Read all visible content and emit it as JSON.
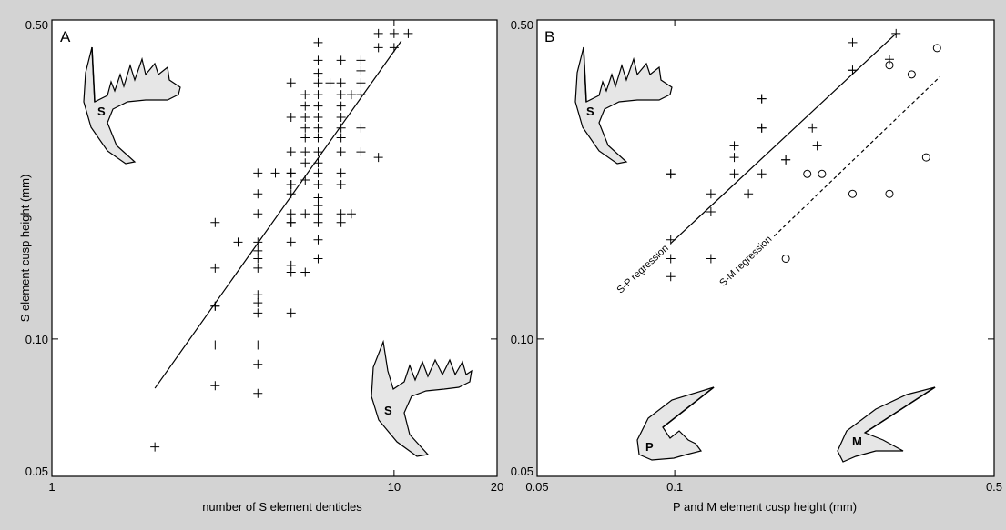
{
  "chart_data": [
    {
      "type": "scatter",
      "panel_label": "A",
      "xlabel": "number of S element denticles",
      "ylabel": "S element cusp height (mm)",
      "xscale": "log",
      "yscale": "log",
      "xlim": [
        1,
        20
      ],
      "ylim": [
        0.05,
        0.5
      ],
      "xticks": [
        {
          "value": 1,
          "label": "1"
        },
        {
          "value": 10,
          "label": "10"
        },
        {
          "value": 20,
          "label": "20"
        }
      ],
      "yticks": [
        {
          "value": 0.05,
          "label": "0.05"
        },
        {
          "value": 0.1,
          "label": "0.10"
        },
        {
          "value": 0.5,
          "label": "0.50"
        }
      ],
      "grid": false,
      "marker": "+",
      "series": [
        {
          "points": [
            [
              2,
              0.058
            ],
            [
              3,
              0.079
            ],
            [
              3,
              0.097
            ],
            [
              3,
              0.118
            ],
            [
              3,
              0.118
            ],
            [
              3,
              0.143
            ],
            [
              3,
              0.18
            ],
            [
              3.5,
              0.163
            ],
            [
              4,
              0.076
            ],
            [
              4,
              0.088
            ],
            [
              4,
              0.097
            ],
            [
              4,
              0.114
            ],
            [
              4,
              0.12
            ],
            [
              4,
              0.125
            ],
            [
              4,
              0.143
            ],
            [
              4,
              0.15
            ],
            [
              4,
              0.156
            ],
            [
              4,
              0.163
            ],
            [
              4,
              0.188
            ],
            [
              4,
              0.208
            ],
            [
              4,
              0.231
            ],
            [
              4.5,
              0.231
            ],
            [
              5,
              0.114
            ],
            [
              5,
              0.14
            ],
            [
              5,
              0.145
            ],
            [
              5,
              0.163
            ],
            [
              5,
              0.18
            ],
            [
              5,
              0.18
            ],
            [
              5,
              0.188
            ],
            [
              5,
              0.208
            ],
            [
              5,
              0.218
            ],
            [
              5,
              0.218
            ],
            [
              5,
              0.231
            ],
            [
              5,
              0.231
            ],
            [
              5,
              0.257
            ],
            [
              5,
              0.306
            ],
            [
              5,
              0.364
            ],
            [
              5.5,
              0.14
            ],
            [
              5.5,
              0.188
            ],
            [
              5.5,
              0.223
            ],
            [
              5.5,
              0.243
            ],
            [
              5.5,
              0.257
            ],
            [
              5.5,
              0.276
            ],
            [
              5.5,
              0.29
            ],
            [
              5.5,
              0.306
            ],
            [
              5.5,
              0.324
            ],
            [
              5.5,
              0.343
            ],
            [
              6,
              0.15
            ],
            [
              6,
              0.165
            ],
            [
              6,
              0.18
            ],
            [
              6,
              0.188
            ],
            [
              6,
              0.196
            ],
            [
              6,
              0.204
            ],
            [
              6,
              0.218
            ],
            [
              6,
              0.231
            ],
            [
              6,
              0.243
            ],
            [
              6,
              0.257
            ],
            [
              6,
              0.276
            ],
            [
              6,
              0.29
            ],
            [
              6,
              0.306
            ],
            [
              6,
              0.324
            ],
            [
              6,
              0.343
            ],
            [
              6,
              0.364
            ],
            [
              6,
              0.382
            ],
            [
              6,
              0.408
            ],
            [
              6,
              0.446
            ],
            [
              6.5,
              0.364
            ],
            [
              7,
              0.18
            ],
            [
              7,
              0.188
            ],
            [
              7,
              0.218
            ],
            [
              7,
              0.231
            ],
            [
              7,
              0.257
            ],
            [
              7,
              0.276
            ],
            [
              7,
              0.29
            ],
            [
              7,
              0.306
            ],
            [
              7,
              0.324
            ],
            [
              7,
              0.343
            ],
            [
              7,
              0.364
            ],
            [
              7,
              0.408
            ],
            [
              7.5,
              0.188
            ],
            [
              7.5,
              0.343
            ],
            [
              8,
              0.257
            ],
            [
              8,
              0.29
            ],
            [
              8,
              0.343
            ],
            [
              8,
              0.364
            ],
            [
              8,
              0.387
            ],
            [
              8,
              0.408
            ],
            [
              9,
              0.25
            ],
            [
              9,
              0.435
            ],
            [
              9,
              0.467
            ],
            [
              10,
              0.467
            ],
            [
              10,
              0.435
            ],
            [
              11,
              0.467
            ]
          ]
        }
      ],
      "regression_lines": [
        {
          "x": [
            2,
            10.5
          ],
          "y": [
            0.078,
            0.45
          ],
          "style": "solid"
        }
      ],
      "annotations": [
        "S",
        "S"
      ]
    },
    {
      "type": "scatter",
      "panel_label": "B",
      "xlabel": "P and M element cusp height (mm)",
      "ylabel": "",
      "xscale": "log",
      "yscale": "log",
      "xlim": [
        0.05,
        0.5
      ],
      "ylim": [
        0.05,
        0.5
      ],
      "xticks": [
        {
          "value": 0.05,
          "label": "0.05"
        },
        {
          "value": 0.1,
          "label": "0.1"
        },
        {
          "value": 0.5,
          "label": "0.5"
        }
      ],
      "yticks": [
        {
          "value": 0.05,
          "label": "0.05"
        },
        {
          "value": 0.1,
          "label": "0.10"
        },
        {
          "value": 0.5,
          "label": "0.50"
        }
      ],
      "grid": false,
      "series": [
        {
          "marker": "+",
          "points": [
            [
              0.098,
              0.137
            ],
            [
              0.098,
              0.15
            ],
            [
              0.098,
              0.165
            ],
            [
              0.098,
              0.23
            ],
            [
              0.098,
              0.23
            ],
            [
              0.12,
              0.15
            ],
            [
              0.12,
              0.19
            ],
            [
              0.12,
              0.208
            ],
            [
              0.135,
              0.23
            ],
            [
              0.135,
              0.25
            ],
            [
              0.135,
              0.265
            ],
            [
              0.145,
              0.208
            ],
            [
              0.155,
              0.23
            ],
            [
              0.155,
              0.29
            ],
            [
              0.155,
              0.29
            ],
            [
              0.155,
              0.336
            ],
            [
              0.155,
              0.336
            ],
            [
              0.175,
              0.247
            ],
            [
              0.175,
              0.247
            ],
            [
              0.2,
              0.29
            ],
            [
              0.205,
              0.265
            ],
            [
              0.245,
              0.388
            ],
            [
              0.245,
              0.388
            ],
            [
              0.245,
              0.446
            ],
            [
              0.295,
              0.41
            ],
            [
              0.305,
              0.467
            ]
          ]
        },
        {
          "marker": "o",
          "points": [
            [
              0.175,
              0.15
            ],
            [
              0.195,
              0.23
            ],
            [
              0.21,
              0.23
            ],
            [
              0.245,
              0.208
            ],
            [
              0.295,
              0.208
            ],
            [
              0.295,
              0.398
            ],
            [
              0.33,
              0.38
            ],
            [
              0.355,
              0.25
            ],
            [
              0.375,
              0.434
            ]
          ]
        }
      ],
      "regression_lines": [
        {
          "name": "S-P regression",
          "x": [
            0.098,
            0.305
          ],
          "y": [
            0.162,
            0.467
          ],
          "style": "solid"
        },
        {
          "name": "S-M regression",
          "x": [
            0.165,
            0.38
          ],
          "y": [
            0.168,
            0.375
          ],
          "style": "dashed"
        }
      ],
      "annotations": [
        "S",
        "P",
        "M"
      ]
    }
  ]
}
